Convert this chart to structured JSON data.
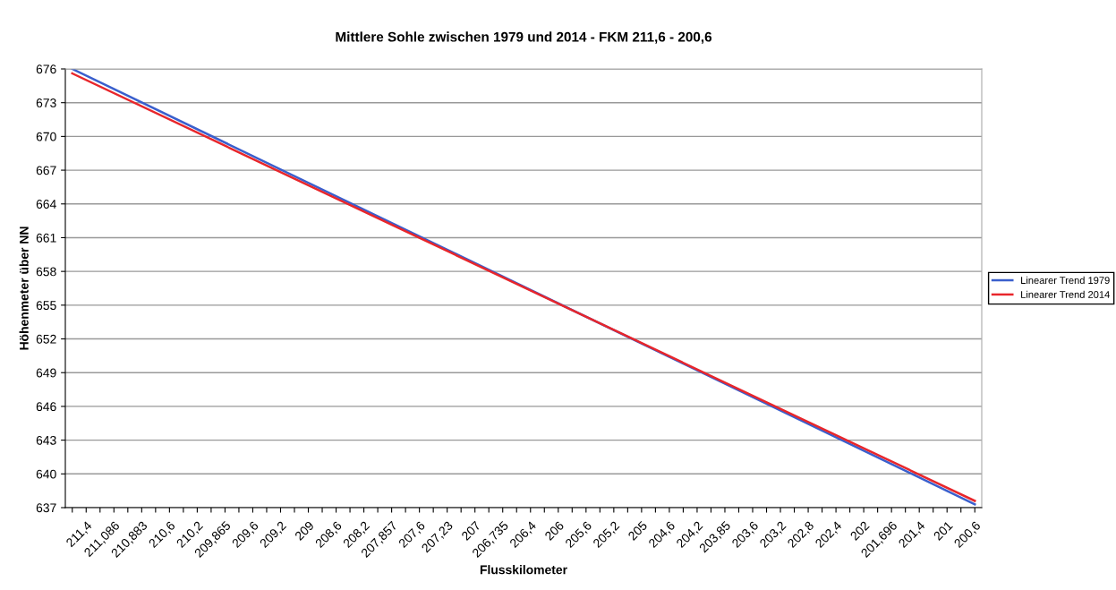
{
  "chart_data": {
    "type": "line",
    "title": "Mittlere Sohle zwischen 1979 und 2014 - FKM 211,6 - 200,6",
    "xlabel": "Flusskilometer",
    "ylabel": "Höhenmeter über NN",
    "categories": [
      null,
      "211,4",
      null,
      "211,086",
      null,
      "210,883",
      null,
      "210,6",
      null,
      "210,2",
      null,
      "209,865",
      null,
      "209,6",
      null,
      "209,2",
      null,
      "209",
      null,
      "208,6",
      null,
      "208,2",
      null,
      "207,857",
      null,
      "207,6",
      null,
      "207,23",
      null,
      "207",
      null,
      "206,735",
      null,
      "206,4",
      null,
      "206",
      null,
      "205,6",
      null,
      "205,2",
      null,
      "205",
      null,
      "204,6",
      null,
      "204,2",
      null,
      "203,85",
      null,
      "203,6",
      null,
      "203,2",
      null,
      "202,8",
      null,
      "202,4",
      null,
      "202",
      null,
      "201,696",
      null,
      "201,4",
      null,
      "201",
      null,
      "200,6"
    ],
    "series": [
      {
        "name": "Linearer Trend 1979",
        "color": "#3a5fcd",
        "values": [
          676.0,
          null,
          null,
          null,
          null,
          null,
          null,
          null,
          null,
          null,
          null,
          null,
          null,
          null,
          null,
          null,
          null,
          null,
          null,
          null,
          null,
          null,
          null,
          null,
          null,
          null,
          null,
          null,
          null,
          null,
          null,
          null,
          null,
          null,
          null,
          null,
          null,
          null,
          null,
          null,
          null,
          null,
          null,
          null,
          null,
          null,
          null,
          null,
          null,
          null,
          null,
          null,
          null,
          null,
          null,
          null,
          null,
          null,
          null,
          null,
          null,
          null,
          null,
          null,
          null,
          637.3
        ]
      },
      {
        "name": "Linearer Trend 2014",
        "color": "#e8262b",
        "values": [
          675.6,
          null,
          null,
          null,
          null,
          null,
          null,
          null,
          null,
          null,
          null,
          null,
          null,
          null,
          null,
          null,
          null,
          null,
          null,
          null,
          null,
          null,
          null,
          null,
          null,
          null,
          null,
          null,
          null,
          null,
          null,
          null,
          null,
          null,
          null,
          null,
          null,
          null,
          null,
          null,
          null,
          null,
          null,
          null,
          null,
          null,
          null,
          null,
          null,
          null,
          null,
          null,
          null,
          null,
          null,
          null,
          null,
          null,
          null,
          null,
          null,
          null,
          null,
          null,
          null,
          637.6
        ]
      }
    ],
    "ylim": [
      637,
      676
    ],
    "yticks": [
      637,
      640,
      643,
      646,
      649,
      652,
      655,
      658,
      661,
      664,
      667,
      670,
      673,
      676
    ],
    "grid": "y",
    "legend": "right",
    "marker": "none",
    "line_style": "solid"
  }
}
